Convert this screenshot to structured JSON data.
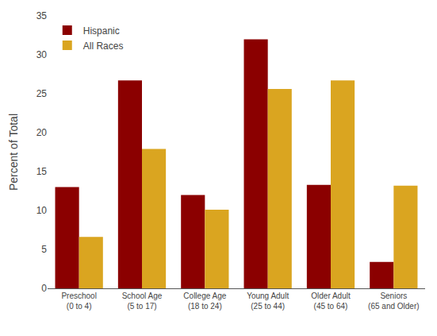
{
  "chart_data": {
    "type": "bar",
    "categories": [
      "Preschool\n(0 to 4)",
      "School Age\n(5 to 17)",
      "College Age\n(18 to 24)",
      "Young Adult\n(25 to 44)",
      "Older Adult\n(45 to 64)",
      "Seniors\n(65 and Older)"
    ],
    "series": [
      {
        "name": "Hispanic",
        "color": "#8B0000",
        "values": [
          13.0,
          26.7,
          12.0,
          32.0,
          13.3,
          3.4
        ]
      },
      {
        "name": "All Races",
        "color": "#DAA520",
        "values": [
          6.6,
          17.9,
          10.1,
          25.6,
          26.7,
          13.2
        ]
      }
    ],
    "ylabel": "Percent of Total",
    "ylim": [
      0,
      35
    ],
    "yticks": [
      0,
      5,
      10,
      15,
      20,
      25,
      30,
      35
    ],
    "grid": false,
    "legend": "upper left"
  }
}
